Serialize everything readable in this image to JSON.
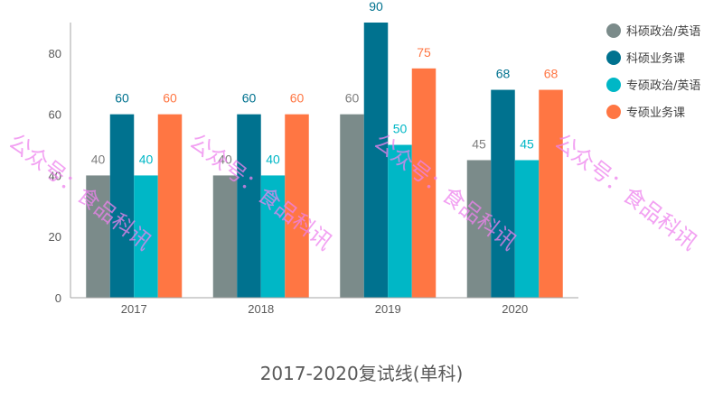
{
  "chart_data": {
    "type": "bar",
    "title": "2017-2020复试线(单科)",
    "xlabel": "",
    "ylabel": "",
    "categories": [
      "2017",
      "2018",
      "2019",
      "2020"
    ],
    "series": [
      {
        "name": "科硕政治/英语",
        "values": [
          40,
          40,
          60,
          45
        ],
        "color": "#7b8b8a",
        "label_color": "#7f7f7f"
      },
      {
        "name": "科硕业务课",
        "values": [
          60,
          60,
          90,
          68
        ],
        "color": "#00728f",
        "label_color": "#00728f"
      },
      {
        "name": "专硕政治/英语",
        "values": [
          40,
          40,
          50,
          45
        ],
        "color": "#00b7c6",
        "label_color": "#00b7c6"
      },
      {
        "name": "专硕业务课",
        "values": [
          60,
          60,
          75,
          68
        ],
        "color": "#ff7643",
        "label_color": "#ff7643"
      }
    ],
    "ylim": [
      0,
      90
    ],
    "yticks": [
      0,
      20,
      40,
      60,
      80
    ],
    "grid": false,
    "legend_position": "right"
  },
  "watermark": {
    "text": "公众号：食品科讯",
    "color": "#ee82ee"
  }
}
